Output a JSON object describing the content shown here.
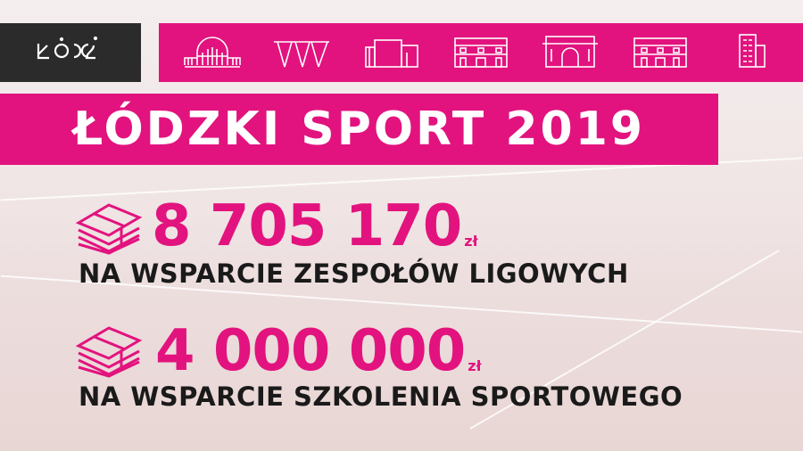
{
  "logo": {
    "text": "ŁÓDŹ"
  },
  "icons": [
    "train-station-icon",
    "roof-structure-icon",
    "modern-building-icon",
    "historic-building-icon",
    "arched-building-icon",
    "palace-icon",
    "tower-block-icon"
  ],
  "title": "ŁÓDZKI SPORT 2019",
  "amounts": [
    {
      "value": "8 705 170",
      "currency": "zł",
      "label": "NA WSPARCIE ZESPOŁÓW LIGOWYCH",
      "icon": "money-stack-icon"
    },
    {
      "value": "4 000 000",
      "currency": "zł",
      "label": "NA WSPARCIE SZKOLENIA SPORTOWEGO",
      "icon": "money-stack-icon"
    }
  ],
  "colors": {
    "accent": "#e2137e",
    "dark": "#2b2b2b"
  }
}
